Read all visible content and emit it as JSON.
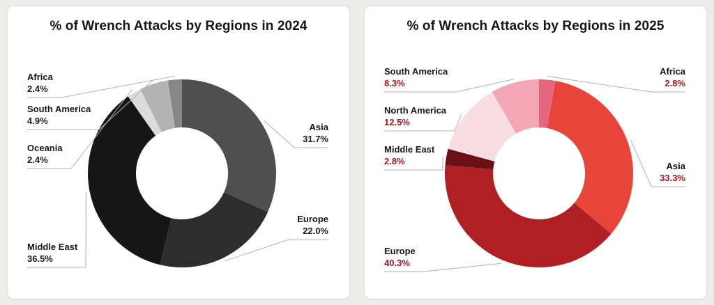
{
  "page": {
    "background_color": "#edeceb",
    "card_background": "#ffffff"
  },
  "chart_data": [
    {
      "type": "pie",
      "variant": "donut",
      "title": "% of Wrench Attacks by Regions in 2024",
      "legend": "none",
      "labels_position": "outside-with-leader-lines",
      "hole_ratio": 0.49,
      "pct_color": "#1b1b1b",
      "slices": [
        {
          "name": "Asia",
          "value": 31.7,
          "pct_label": "31.7%",
          "color": "#4f4f4f"
        },
        {
          "name": "Europe",
          "value": 22.0,
          "pct_label": "22.0%",
          "color": "#2d2d2d"
        },
        {
          "name": "Middle East",
          "value": 36.5,
          "pct_label": "36.5%",
          "color": "#161616"
        },
        {
          "name": "Oceania",
          "value": 2.4,
          "pct_label": "2.4%",
          "color": "#dcdcdc"
        },
        {
          "name": "South America",
          "value": 4.9,
          "pct_label": "4.9%",
          "color": "#b3b3b3"
        },
        {
          "name": "Africa",
          "value": 2.4,
          "pct_label": "2.4%",
          "color": "#878787"
        }
      ]
    },
    {
      "type": "pie",
      "variant": "donut",
      "title": "% of Wrench Attacks by Regions in 2025",
      "legend": "none",
      "labels_position": "outside-with-leader-lines",
      "hole_ratio": 0.49,
      "pct_color": "#a3161f",
      "slices": [
        {
          "name": "Africa",
          "value": 2.8,
          "pct_label": "2.8%",
          "color": "#e2677f"
        },
        {
          "name": "Asia",
          "value": 33.3,
          "pct_label": "33.3%",
          "color": "#e8453a"
        },
        {
          "name": "Europe",
          "value": 40.3,
          "pct_label": "40.3%",
          "color": "#b01f23"
        },
        {
          "name": "Middle East",
          "value": 2.8,
          "pct_label": "2.8%",
          "color": "#6b1016"
        },
        {
          "name": "North America",
          "value": 12.5,
          "pct_label": "12.5%",
          "color": "#f8dde2"
        },
        {
          "name": "South America",
          "value": 8.3,
          "pct_label": "8.3%",
          "color": "#f3a7b4"
        }
      ]
    }
  ]
}
